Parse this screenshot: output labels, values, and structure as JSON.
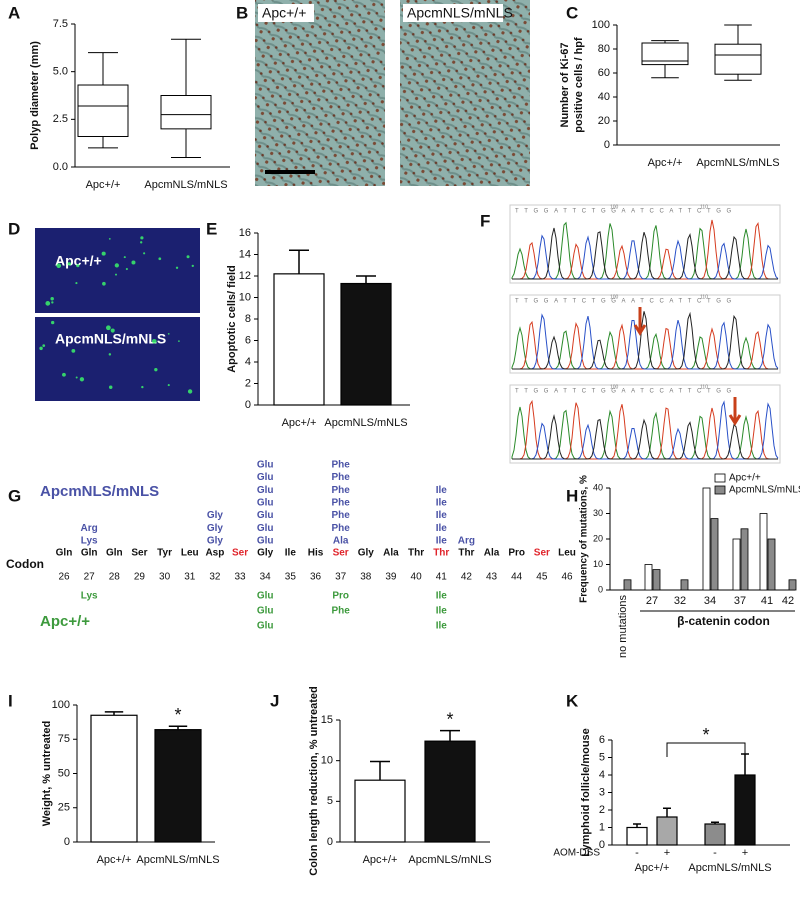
{
  "panel_labels": [
    "A",
    "B",
    "C",
    "D",
    "E",
    "F",
    "G",
    "H",
    "I",
    "J",
    "K"
  ],
  "images": {
    "histology": [
      "Apc+/+",
      "ApcmNLS/mNLS"
    ],
    "immunofluorescence": [
      "Apc+/+",
      "ApcmNLS/mNLS"
    ]
  },
  "sequencing": {
    "sequence": "TTGGATTCTGGAATCCATTCTGG",
    "positions": [
      "100",
      "110"
    ]
  },
  "codon_diagram": {
    "label_top": "ApcmNLS/mNLS",
    "label_bottom": "Apc+/+",
    "row_label": "Codon",
    "color_top": "#4a52a6",
    "color_bottom": "#3d9a3d",
    "codons": [
      {
        "aa": "Gln",
        "pos": "26",
        "color": "#111"
      },
      {
        "aa": "Gln",
        "pos": "27",
        "color": "#111"
      },
      {
        "aa": "Gln",
        "pos": "28",
        "color": "#111"
      },
      {
        "aa": "Ser",
        "pos": "29",
        "color": "#111"
      },
      {
        "aa": "Tyr",
        "pos": "30",
        "color": "#111"
      },
      {
        "aa": "Leu",
        "pos": "31",
        "color": "#111"
      },
      {
        "aa": "Asp",
        "pos": "32",
        "color": "#111"
      },
      {
        "aa": "Ser",
        "pos": "33",
        "color": "#e0242b"
      },
      {
        "aa": "Gly",
        "pos": "34",
        "color": "#111"
      },
      {
        "aa": "Ile",
        "pos": "35",
        "color": "#111"
      },
      {
        "aa": "His",
        "pos": "36",
        "color": "#111"
      },
      {
        "aa": "Ser",
        "pos": "37",
        "color": "#e0242b"
      },
      {
        "aa": "Gly",
        "pos": "38",
        "color": "#111"
      },
      {
        "aa": "Ala",
        "pos": "39",
        "color": "#111"
      },
      {
        "aa": "Thr",
        "pos": "40",
        "color": "#111"
      },
      {
        "aa": "Thr",
        "pos": "41",
        "color": "#e0242b"
      },
      {
        "aa": "Thr",
        "pos": "42",
        "color": "#111"
      },
      {
        "aa": "Ala",
        "pos": "43",
        "color": "#111"
      },
      {
        "aa": "Pro",
        "pos": "44",
        "color": "#111"
      },
      {
        "aa": "Ser",
        "pos": "45",
        "color": "#e0242b"
      },
      {
        "aa": "Leu",
        "pos": "46",
        "color": "#111"
      }
    ],
    "above": [
      [],
      [
        "Arg",
        "Lys"
      ],
      [],
      [],
      [],
      [],
      [
        "Gly",
        "Gly",
        "Gly"
      ],
      [],
      [
        "Glu",
        "Glu",
        "Glu",
        "Glu",
        "Glu",
        "Glu",
        "Glu"
      ],
      [],
      [],
      [
        "Phe",
        "Phe",
        "Phe",
        "Phe",
        "Phe",
        "Phe",
        "Ala"
      ],
      [],
      [],
      [],
      [
        "Ile",
        "Ile",
        "Ile",
        "Ile",
        "Ile"
      ],
      [
        "Arg"
      ],
      [],
      [],
      [],
      []
    ],
    "below": [
      [],
      [
        "Lys"
      ],
      [],
      [],
      [],
      [],
      [],
      [],
      [
        "Glu",
        "Glu",
        "Glu"
      ],
      [],
      [],
      [
        "Pro",
        "Phe"
      ],
      [],
      [],
      [],
      [
        "Ile",
        "Ile",
        "Ile"
      ],
      [],
      [],
      [],
      [],
      []
    ]
  },
  "chart_data": [
    {
      "type": "box",
      "ylabel": [
        "Polyp diameter (mm)"
      ],
      "categories": [
        "Apc+/+",
        "ApcmNLS/mNLS"
      ],
      "min": [
        1.0,
        0.5
      ],
      "q1": [
        1.6,
        2.0
      ],
      "median": [
        3.2,
        2.75
      ],
      "q3": [
        4.3,
        3.75
      ],
      "max": [
        6.0,
        6.7
      ],
      "ylim": [
        0,
        7.5
      ],
      "yticks": [
        {
          "value": 0,
          "label": "0.0"
        },
        2.5,
        {
          "value": 5,
          "label": "5.0"
        },
        7.5
      ]
    },
    {
      "type": "box",
      "ylabel": [
        "Number of Ki-67",
        "positive cells / hpf"
      ],
      "categories": [
        "Apc+/+",
        "ApcmNLS/mNLS"
      ],
      "min": [
        56,
        54
      ],
      "q1": [
        67,
        59
      ],
      "median": [
        70,
        75
      ],
      "q3": [
        85,
        84
      ],
      "max": [
        87,
        100
      ],
      "ylim": [
        0,
        100
      ],
      "yticks": [
        0,
        20,
        40,
        60,
        80,
        100
      ]
    },
    {
      "type": "bar",
      "ylabel": [
        "Apoptotic cells/ field"
      ],
      "categories": [
        "Apc+/+",
        "ApcmNLS/mNLS"
      ],
      "values": [
        12.2,
        11.3
      ],
      "errors": [
        2.2,
        0.7
      ],
      "colors": [
        "#ffffff",
        "#111111"
      ],
      "ylim": [
        0,
        16
      ],
      "yticks": [
        0,
        2,
        4,
        6,
        8,
        10,
        12,
        14,
        16
      ]
    },
    {
      "type": "grouped",
      "ylabel": [
        "Frequency of mutations, %"
      ],
      "xlabel": "β-catenin codon",
      "legend": "upper right",
      "categories": [
        "no mutations",
        "27",
        "32",
        "34",
        "37",
        "41",
        "42"
      ],
      "series": [
        {
          "name": "Apc+/+",
          "color": "#ffffff",
          "values": [
            0,
            10,
            0,
            40,
            20,
            30,
            0
          ]
        },
        {
          "name": "ApcmNLS/mNLS",
          "color": "#8a8a8a",
          "values": [
            4,
            8,
            4,
            28,
            24,
            20,
            4
          ]
        }
      ],
      "ylim": [
        0,
        40
      ],
      "yticks": [
        0,
        10,
        20,
        30,
        40
      ]
    },
    {
      "type": "bar",
      "ylabel": [
        "Weight, % untreated"
      ],
      "categories": [
        "Apc+/+",
        "ApcmNLS/mNLS"
      ],
      "values": [
        92.5,
        82
      ],
      "errors": [
        2.5,
        2.5
      ],
      "colors": [
        "#ffffff",
        "#111111"
      ],
      "annotation": "*",
      "ylim": [
        0,
        100
      ],
      "yticks": [
        0,
        25,
        50,
        75,
        100
      ]
    },
    {
      "type": "bar",
      "ylabel": [
        "Colon length reduction, % untreated"
      ],
      "categories": [
        "Apc+/+",
        "ApcmNLS/mNLS"
      ],
      "values": [
        7.6,
        12.4
      ],
      "errors": [
        2.3,
        1.3
      ],
      "colors": [
        "#ffffff",
        "#111111"
      ],
      "annotation": "*",
      "ylim": [
        0,
        15
      ],
      "yticks": [
        0,
        5,
        10,
        15
      ]
    },
    {
      "type": "bar",
      "ylabel": [
        "Lymphoid follicle/mouse"
      ],
      "xlabel": "AOM-DSS",
      "categories": [
        "-",
        "+",
        "-",
        "+"
      ],
      "groups": [
        "Apc+/+",
        "ApcmNLS/mNLS"
      ],
      "values": [
        1.0,
        1.6,
        1.2,
        4.0
      ],
      "errors": [
        0.2,
        0.5,
        0.1,
        1.2
      ],
      "colors": [
        "#ffffff",
        "#a8a8a8",
        "#8c8c8c",
        "#111111"
      ],
      "annotation": "*",
      "ylim": [
        0,
        6
      ],
      "yticks": [
        0,
        1,
        2,
        3,
        4,
        5,
        6
      ]
    }
  ]
}
